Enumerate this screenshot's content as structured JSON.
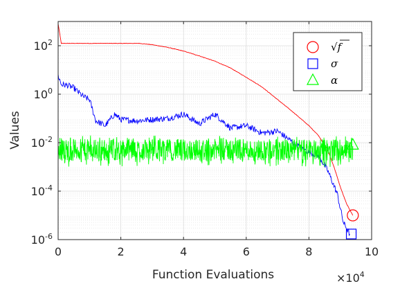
{
  "chart_data": {
    "type": "line",
    "xlabel": "Function Evaluations",
    "ylabel": "Values",
    "x_multiplier": "×10",
    "x_multiplier_exp": "4",
    "xlim": [
      0,
      10
    ],
    "ylim": [
      1e-06,
      1000
    ],
    "yscale": "log",
    "x_ticks": [
      "0",
      "2",
      "4",
      "6",
      "8",
      "10"
    ],
    "y_tick_base": "10",
    "y_ticks": [
      {
        "value": 1e-06,
        "exp": "-6"
      },
      {
        "value": 0.0001,
        "exp": "-4"
      },
      {
        "value": 0.01,
        "exp": "-2"
      },
      {
        "value": 1,
        "exp": "0"
      },
      {
        "value": 100,
        "exp": "2"
      }
    ],
    "grid": true,
    "legend_position": "top-right",
    "series": [
      {
        "name": "√f",
        "color": "#ff0000",
        "marker": "circle",
        "marker_at": [
          9.4,
          1e-05
        ],
        "x": [
          0,
          0.1,
          1,
          2,
          2.6,
          3.0,
          3.5,
          4.0,
          4.5,
          5.0,
          5.5,
          6.0,
          6.5,
          7.0,
          7.5,
          8.0,
          8.3,
          8.6,
          8.8,
          9.0,
          9.2,
          9.4
        ],
        "y": [
          800,
          125,
          125,
          125,
          125,
          110,
          85,
          60,
          38,
          23,
          12,
          5,
          2,
          0.6,
          0.18,
          0.05,
          0.02,
          0.005,
          0.001,
          0.00015,
          3e-05,
          1e-05
        ]
      },
      {
        "name": "σ",
        "color": "#0000ff",
        "marker": "square",
        "marker_at": [
          9.35,
          1.7e-06
        ],
        "x": [
          0,
          0.1,
          0.3,
          0.5,
          0.8,
          1.0,
          1.2,
          1.5,
          1.8,
          2.0,
          2.5,
          3.0,
          3.5,
          4.0,
          4.5,
          5.0,
          5.5,
          6.0,
          6.5,
          7.0,
          7.5,
          8.0,
          8.3,
          8.6,
          8.9,
          9.1,
          9.3
        ],
        "y": [
          6,
          2.5,
          2.3,
          1.8,
          0.8,
          0.6,
          0.08,
          0.05,
          0.15,
          0.09,
          0.08,
          0.09,
          0.1,
          0.15,
          0.06,
          0.15,
          0.04,
          0.05,
          0.025,
          0.03,
          0.01,
          0.004,
          0.003,
          0.0007,
          8e-05,
          5e-06,
          1.7e-06
        ]
      },
      {
        "name": "α",
        "color": "#00ff00",
        "marker": "triangle",
        "marker_at": [
          9.4,
          0.008
        ],
        "x_range": [
          0,
          9.4
        ],
        "center": 0.005,
        "low": 0.001,
        "high": 0.02,
        "points": 1000
      }
    ],
    "legend": [
      {
        "label_pre": "√",
        "label_main": "f",
        "symbol": "circle",
        "color": "#ff0000"
      },
      {
        "label_pre": "",
        "label_main": "σ",
        "symbol": "square",
        "color": "#0000ff"
      },
      {
        "label_pre": "",
        "label_main": "α",
        "symbol": "triangle",
        "color": "#00ff00"
      }
    ]
  }
}
